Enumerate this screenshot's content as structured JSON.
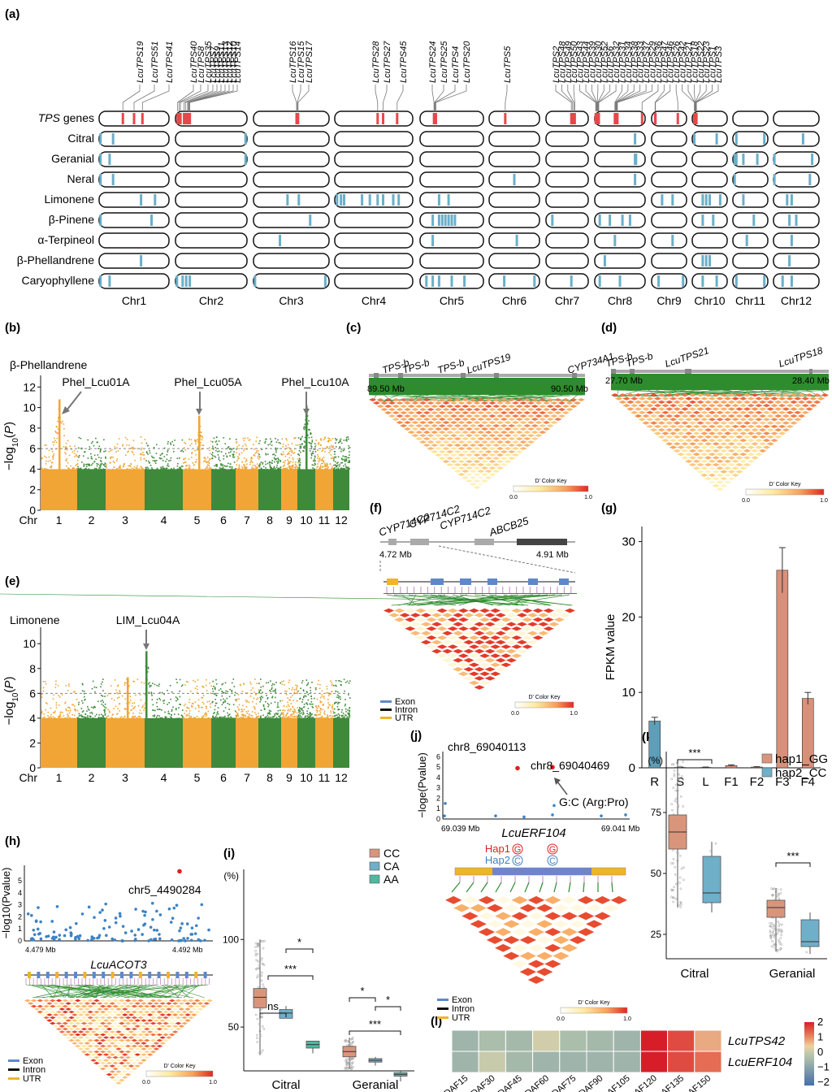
{
  "colors": {
    "orange": "#F0A535",
    "green": "#3E8A3A",
    "tpsRed": "#E8474A",
    "blueMark": "#6AAFC9",
    "ldGreen": "#2E8B2E",
    "barBlue": "#5E9EB8",
    "barSalmon": "#D8907A",
    "boxSalmon": "#D9957C",
    "boxBlue": "#6FAFC8",
    "boxTeal": "#4DB8A0"
  },
  "panel_a": {
    "label": "(a)",
    "rows": [
      "TPS genes",
      "Citral",
      "Geranial",
      "Neral",
      "Limonene",
      "β-Pinene",
      "α-Terpineol",
      "β-Phellandrene",
      "Caryophyllene"
    ],
    "chromosomes": [
      "Chr1",
      "Chr2",
      "Chr3",
      "Chr4",
      "Chr5",
      "Chr6",
      "Chr7",
      "Chr8",
      "Chr9",
      "Chr10",
      "Chr11",
      "Chr12"
    ],
    "tps_labels": [
      {
        "name": "LcuTPS19",
        "chr": 0,
        "pos": 0.34
      },
      {
        "name": "LcuTPS51",
        "chr": 0,
        "pos": 0.5
      },
      {
        "name": "LcuTPS41",
        "chr": 0,
        "pos": 0.62
      },
      {
        "name": "LcuTPS40",
        "chr": 1,
        "pos": 0.03
      },
      {
        "name": "LcuTPS8",
        "chr": 1,
        "pos": 0.05
      },
      {
        "name": "LcuTPS35",
        "chr": 1,
        "pos": 0.07
      },
      {
        "name": "LcuTPS7",
        "chr": 1,
        "pos": 0.12
      },
      {
        "name": "LcuTPS9",
        "chr": 1,
        "pos": 0.14
      },
      {
        "name": "LcuTPS11",
        "chr": 1,
        "pos": 0.17
      },
      {
        "name": "LcuTPS13",
        "chr": 1,
        "pos": 0.18
      },
      {
        "name": "LcuTPS12",
        "chr": 1,
        "pos": 0.19
      },
      {
        "name": "LcuTPS10",
        "chr": 1,
        "pos": 0.2
      },
      {
        "name": "LcuTPS14",
        "chr": 1,
        "pos": 0.2
      },
      {
        "name": "LcuTPS16",
        "chr": 2,
        "pos": 0.57
      },
      {
        "name": "LcuTPS15",
        "chr": 2,
        "pos": 0.58
      },
      {
        "name": "LcuTPS17",
        "chr": 2,
        "pos": 0.59
      },
      {
        "name": "LcuTPS28",
        "chr": 3,
        "pos": 0.55
      },
      {
        "name": "LcuTPS27",
        "chr": 3,
        "pos": 0.62
      },
      {
        "name": "LcuTPS45",
        "chr": 3,
        "pos": 0.8
      },
      {
        "name": "LcuTPS24",
        "chr": 4,
        "pos": 0.22
      },
      {
        "name": "LcuTPS25",
        "chr": 4,
        "pos": 0.23
      },
      {
        "name": "LcuTPS4",
        "chr": 4,
        "pos": 0.24
      },
      {
        "name": "LcuTPS20",
        "chr": 4,
        "pos": 0.25
      },
      {
        "name": "LcuTPS5",
        "chr": 5,
        "pos": 0.32
      },
      {
        "name": "LcuTPS2",
        "chr": 6,
        "pos": 0.6
      },
      {
        "name": "LcuTPS48",
        "chr": 6,
        "pos": 0.63
      },
      {
        "name": "LcuTPS49",
        "chr": 6,
        "pos": 0.66
      },
      {
        "name": "LcuTPS50",
        "chr": 6,
        "pos": 0.68
      },
      {
        "name": "LcuTPS43",
        "chr": 7,
        "pos": 0.02
      },
      {
        "name": "LcuTPS44",
        "chr": 7,
        "pos": 0.03
      },
      {
        "name": "LcuTPS39",
        "chr": 7,
        "pos": 0.04
      },
      {
        "name": "LcuTPS30",
        "chr": 7,
        "pos": 0.05
      },
      {
        "name": "LcuTPS52",
        "chr": 7,
        "pos": 0.06
      },
      {
        "name": "LcuTPS6",
        "chr": 7,
        "pos": 0.07
      },
      {
        "name": "LcuTPS32",
        "chr": 7,
        "pos": 0.08
      },
      {
        "name": "LcuTPS31",
        "chr": 7,
        "pos": 0.4
      },
      {
        "name": "LcuTPS34",
        "chr": 7,
        "pos": 0.41
      },
      {
        "name": "LcuTPS38",
        "chr": 7,
        "pos": 0.42
      },
      {
        "name": "LcuTPS33",
        "chr": 7,
        "pos": 0.43
      },
      {
        "name": "LcuTPS37",
        "chr": 7,
        "pos": 0.44
      },
      {
        "name": "LcuTPS29",
        "chr": 7,
        "pos": 0.45
      },
      {
        "name": "LcuTPS36",
        "chr": 7,
        "pos": 0.94
      },
      {
        "name": "LcuTPS47",
        "chr": 8,
        "pos": 0.1
      },
      {
        "name": "LcuTPS46",
        "chr": 8,
        "pos": 0.11
      },
      {
        "name": "LcuTPS26",
        "chr": 8,
        "pos": 0.75
      },
      {
        "name": "LcuTPS42",
        "chr": 9,
        "pos": 0.06
      },
      {
        "name": "LcuTPS21",
        "chr": 9,
        "pos": 0.07
      },
      {
        "name": "LcuTPS18",
        "chr": 9,
        "pos": 0.08
      },
      {
        "name": "LcuTPS22",
        "chr": 9,
        "pos": 0.09
      },
      {
        "name": "LcuTPS23",
        "chr": 9,
        "pos": 0.1
      },
      {
        "name": "LcuTPS1",
        "chr": 9,
        "pos": 0.11
      },
      {
        "name": "LcuTPS3",
        "chr": 9,
        "pos": 0.12
      }
    ]
  },
  "panel_b": {
    "label": "(b)",
    "trait": "β-Phellandrene",
    "ylabel": "−log10(P)",
    "threshold": 6,
    "yticks": [
      0,
      2,
      4,
      6,
      8,
      10,
      12
    ],
    "xlabel": "Chr",
    "chr_ticks": [
      "1",
      "2",
      "3",
      "4",
      "5",
      "6",
      "7",
      "8",
      "9",
      "10",
      "11",
      "12"
    ],
    "peaks": [
      {
        "name": "Phel_Lcu01A",
        "chr": 1,
        "value": 11
      },
      {
        "name": "Phel_Lcu05A",
        "chr": 5,
        "value": 9
      },
      {
        "name": "Phel_Lcu10A",
        "chr": 10,
        "value": 10
      }
    ]
  },
  "panel_c": {
    "label": "(c)",
    "genes": [
      "TPS-b",
      "TPS-b",
      "TPS-b",
      "LcuTPS19",
      "CYP734A1"
    ],
    "start": "89.50 Mb",
    "end": "90.50 Mb",
    "key_title": "D' Color Key",
    "key_min": "0.0",
    "key_max": "1.0"
  },
  "panel_d": {
    "label": "(d)",
    "genes": [
      "TPS-b",
      "TPS-b",
      "LcuTPS21",
      "LcuTPS18"
    ],
    "start": "27.70 Mb",
    "end": "28.40 Mb",
    "key_title": "D' Color Key",
    "key_min": "0.0",
    "key_max": "1.0"
  },
  "panel_e": {
    "label": "(e)",
    "trait": "Limonene",
    "ylabel": "−log10(P)",
    "threshold": 6,
    "yticks": [
      0,
      2,
      4,
      6,
      8,
      10
    ],
    "xlabel": "Chr",
    "chr_ticks": [
      "1",
      "2",
      "3",
      "4",
      "5",
      "6",
      "7",
      "8",
      "9",
      "10",
      "11",
      "12"
    ],
    "peaks": [
      {
        "name": "LIM_Lcu04A",
        "chr": 4,
        "value": 9.5
      }
    ]
  },
  "panel_f": {
    "label": "(f)",
    "genes": [
      "CYP714C2",
      "CYP714C2",
      "CYP714C2",
      "ABCB25"
    ],
    "start": "4.72 Mb",
    "end": "4.91 Mb",
    "legend": [
      "Exon",
      "Intron",
      "UTR"
    ],
    "key_title": "D' Color Key",
    "key_min": "0.0",
    "key_max": "1.0"
  },
  "panel_g": {
    "label": "(g)",
    "ylabel": "FPKM value",
    "yticks": [
      0,
      10,
      20,
      30
    ],
    "ylim": [
      0,
      32
    ],
    "chart_data": {
      "type": "bar",
      "categories": [
        "R",
        "S",
        "L",
        "F1",
        "F2",
        "F3",
        "F4"
      ],
      "values": [
        6.2,
        0.05,
        0.05,
        0.3,
        0.1,
        26.2,
        9.2
      ],
      "errors": [
        0.5,
        0.05,
        0.05,
        0.1,
        0.05,
        3.0,
        0.8
      ],
      "ylabel": "FPKM value",
      "ylim": [
        0,
        32
      ]
    }
  },
  "panel_h": {
    "label": "(h)",
    "snp": "chr5_4490284",
    "ylabel": "−log10(Pvalue)",
    "yticks": [
      "0",
      "1",
      "2",
      "3",
      "4",
      "5"
    ],
    "start": "4.479 Mb",
    "end": "4.492 Mb",
    "gene": "LcuACOT3",
    "legend": [
      "Exon",
      "Intron",
      "UTR"
    ],
    "key_title": "D' Color Key",
    "key_min": "0.0",
    "key_max": "1.0"
  },
  "panel_i": {
    "label": "(i)",
    "unit": "(%)",
    "yticks": [
      "50",
      "100"
    ],
    "legend": [
      "CC",
      "CA",
      "AA"
    ],
    "groups": [
      "Citral",
      "Geranial"
    ],
    "sig": [
      "*",
      "***",
      "ns",
      "*",
      "***",
      "*"
    ],
    "chart_data": {
      "type": "box",
      "groups": [
        "Citral",
        "Geranial"
      ],
      "genotypes": [
        "CC",
        "CA",
        "AA"
      ],
      "medians": [
        [
          67,
          58,
          40
        ],
        [
          36,
          31,
          23
        ]
      ],
      "q1": [
        [
          61,
          55,
          38
        ],
        [
          33,
          30,
          22
        ]
      ],
      "q3": [
        [
          72,
          60,
          42
        ],
        [
          39,
          32,
          24
        ]
      ]
    }
  },
  "panel_j": {
    "label": "(j)",
    "snp1": "chr8_69040113",
    "snp2": "chr8_69040469",
    "change": "G:C (Arg:Pro)",
    "ylabel": "−loge(Pvalue)",
    "yticks": [
      "0",
      "1",
      "2",
      "3",
      "4",
      "5",
      "6"
    ],
    "start": "69.039 Mb",
    "end": "69.041 Mb",
    "gene": "LcuERF104",
    "hap1": "Hap1",
    "hap2": "Hap2",
    "hap1_allele": "G",
    "hap2_allele": "C",
    "legend": [
      "Exon",
      "Intron",
      "UTR"
    ],
    "key_title": "D' Color Key",
    "key_min": "0.0",
    "key_max": "1.0"
  },
  "panel_k": {
    "label": "(k)",
    "unit": "(%)",
    "yticks": [
      "25",
      "50",
      "75"
    ],
    "legend": [
      "hap1_GG",
      "hap2_CC"
    ],
    "groups": [
      "Citral",
      "Geranial"
    ],
    "sig": [
      "***",
      "***"
    ],
    "chart_data": {
      "type": "box",
      "groups": [
        "Citral",
        "Geranial"
      ],
      "haplotypes": [
        "hap1_GG",
        "hap2_CC"
      ],
      "medians": [
        [
          67,
          42
        ],
        [
          36,
          22
        ]
      ],
      "q1": [
        [
          60,
          38
        ],
        [
          32,
          20
        ]
      ],
      "q3": [
        [
          74,
          57
        ],
        [
          39,
          31
        ]
      ]
    }
  },
  "panel_l": {
    "label": "(l)",
    "rows": [
      "LcuTPS42",
      "LcuERF104"
    ],
    "cols": [
      "DAF15",
      "DAF30",
      "DAF45",
      "DAF60",
      "DAF75",
      "DAF90",
      "DAF105",
      "DAF120",
      "DAF135",
      "DAF150"
    ],
    "colorbar": [
      "2",
      "1",
      "0",
      "−1",
      "−2"
    ],
    "chart_data": {
      "type": "heatmap",
      "rows": [
        "LcuTPS42",
        "LcuERF104"
      ],
      "cols": [
        "DAF15",
        "DAF30",
        "DAF45",
        "DAF60",
        "DAF75",
        "DAF90",
        "DAF105",
        "DAF120",
        "DAF135",
        "DAF150"
      ],
      "values": [
        [
          -0.5,
          -0.3,
          -0.4,
          0.2,
          -0.3,
          -0.4,
          -0.5,
          2.0,
          1.6,
          0.8
        ],
        [
          -0.5,
          0.1,
          -0.4,
          -0.5,
          -0.5,
          -0.5,
          -0.5,
          2.0,
          1.6,
          1.3
        ]
      ]
    }
  }
}
